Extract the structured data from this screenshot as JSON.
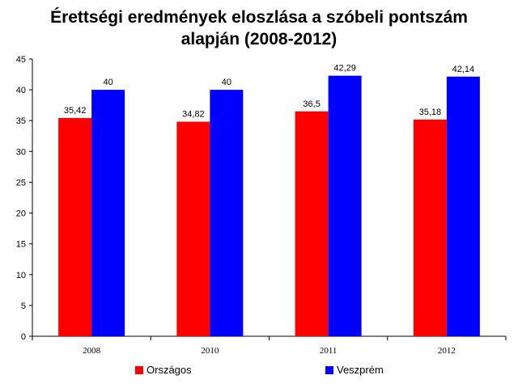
{
  "title_lines": [
    "Érettségi eredmények eloszlása a szóbeli pontszám",
    "alapján (2008-2012)"
  ],
  "chart_data": {
    "type": "bar",
    "title": "Érettségi eredmények eloszlása a szóbeli pontszám alapján (2008-2012)",
    "categories": [
      "2008",
      "2010",
      "2011",
      "2012"
    ],
    "series": [
      {
        "name": "Országos",
        "color": "#ff0000",
        "values": [
          35.42,
          34.82,
          36.5,
          35.18
        ],
        "labels": [
          "35,42",
          "34,82",
          "36,5",
          "35,18"
        ]
      },
      {
        "name": "Veszprém",
        "color": "#0000ff",
        "values": [
          40,
          40,
          42.29,
          42.14
        ],
        "labels": [
          "40",
          "40",
          "42,29",
          "42,14"
        ]
      }
    ],
    "yticks": [
      "0",
      "5",
      "10",
      "15",
      "20",
      "25",
      "30",
      "35",
      "40",
      "45"
    ],
    "ylim": [
      0,
      45
    ],
    "grid": false,
    "legend_position": "bottom"
  }
}
